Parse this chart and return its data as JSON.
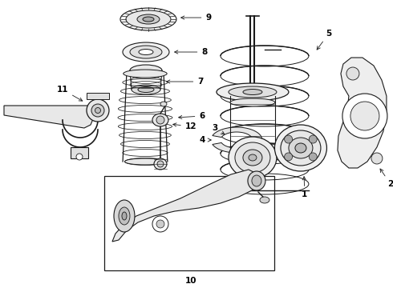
{
  "bg_color": "#ffffff",
  "line_color": "#1a1a1a",
  "figsize": [
    4.9,
    3.6
  ],
  "dpi": 100,
  "xlim": [
    0,
    490
  ],
  "ylim": [
    0,
    360
  ]
}
